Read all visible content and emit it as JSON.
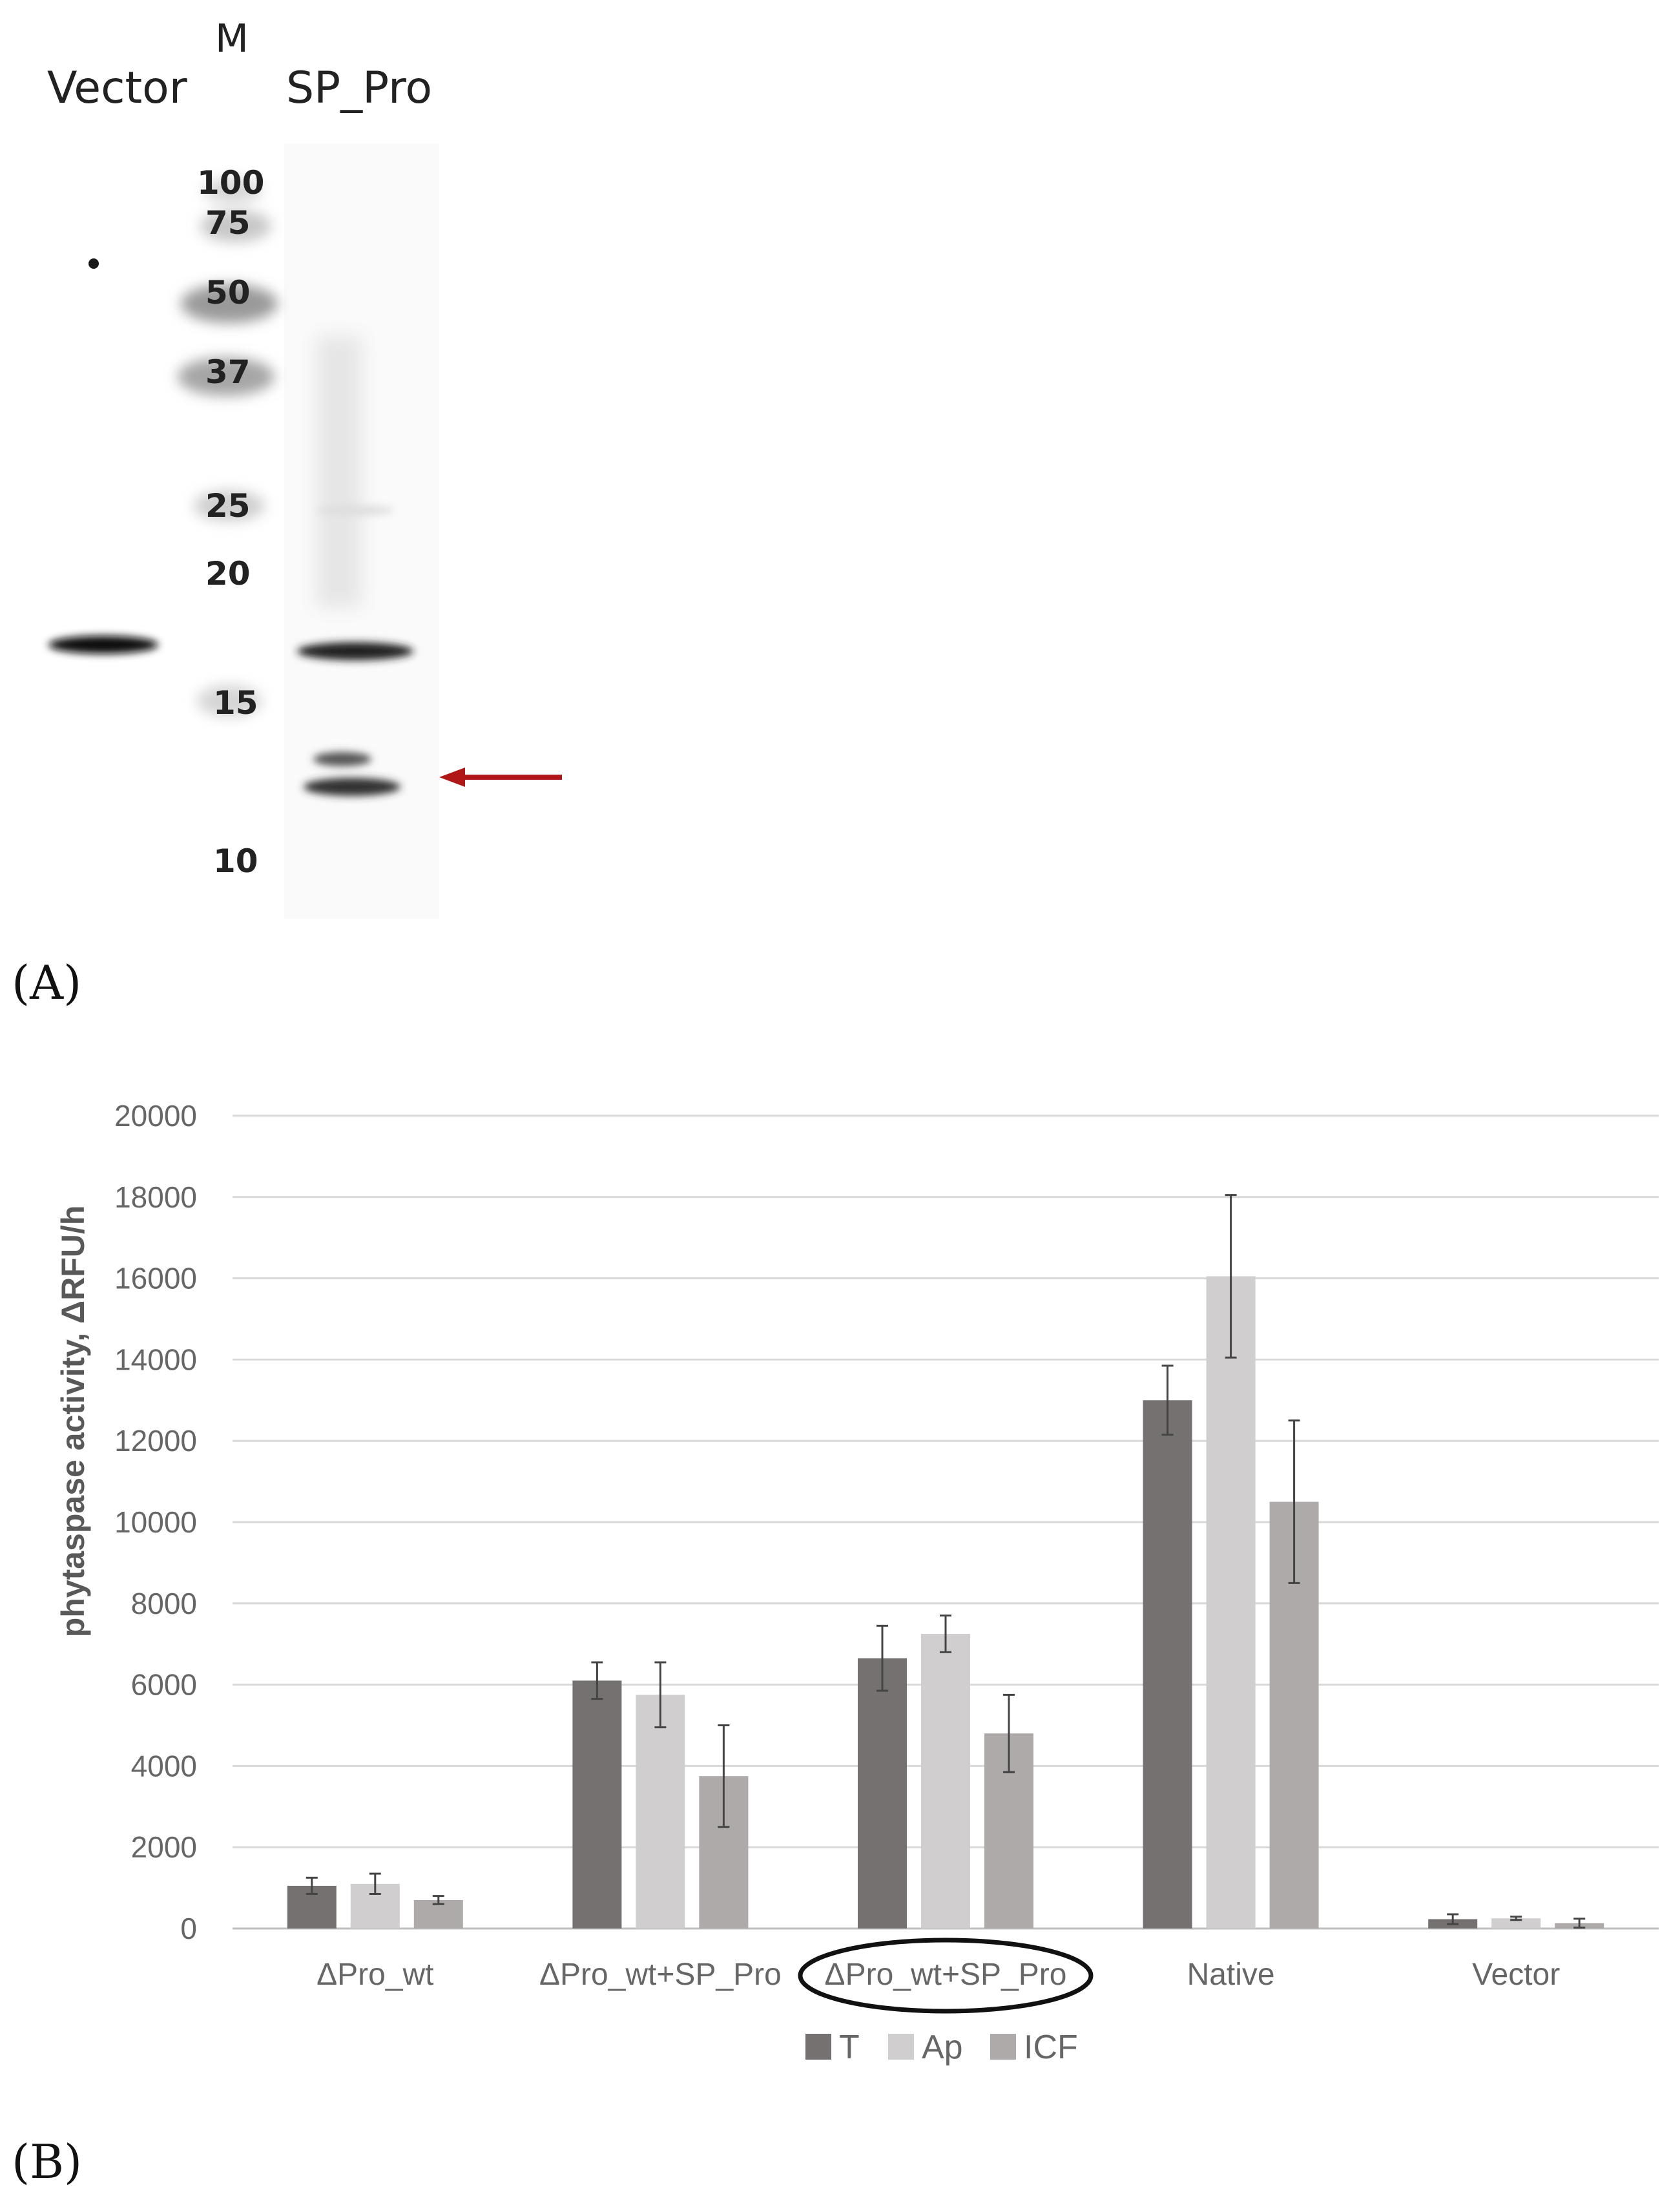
{
  "panel_a": {
    "label": "(A)",
    "lanes": {
      "vector": "Vector",
      "marker": "M",
      "sample": "SP_Pro"
    },
    "markers": [
      "100",
      "75",
      "50",
      "37",
      "25",
      "20",
      "15",
      "10"
    ],
    "arrow_color": "#b01818"
  },
  "panel_b": {
    "label": "(B)"
  },
  "chart_data": {
    "type": "bar",
    "title": "",
    "xlabel": "",
    "ylabel": "phytaspase activity, ΔRFU/h",
    "ylim": [
      0,
      20000
    ],
    "yticks": [
      0,
      2000,
      4000,
      6000,
      8000,
      10000,
      12000,
      14000,
      16000,
      18000,
      20000
    ],
    "categories": [
      "ΔPro_wt",
      "ΔPro_wt+SP_Pro",
      "ΔPro_wt+SP_Pro",
      "Native",
      "Vector"
    ],
    "highlighted_category_index": 2,
    "grid": true,
    "legend_position": "bottom",
    "series": [
      {
        "name": "T",
        "color": "#767171",
        "values": [
          1050,
          6100,
          6650,
          13000,
          230
        ],
        "errors": [
          200,
          450,
          800,
          850,
          120
        ]
      },
      {
        "name": "Ap",
        "color": "#d0cece",
        "values": [
          1100,
          5750,
          7250,
          16050,
          250
        ],
        "errors": [
          250,
          800,
          450,
          2000,
          40
        ]
      },
      {
        "name": "ICF",
        "color": "#aeaaaa",
        "values": [
          700,
          3750,
          4800,
          10500,
          130
        ],
        "errors": [
          100,
          1250,
          950,
          2000,
          110
        ]
      }
    ]
  }
}
